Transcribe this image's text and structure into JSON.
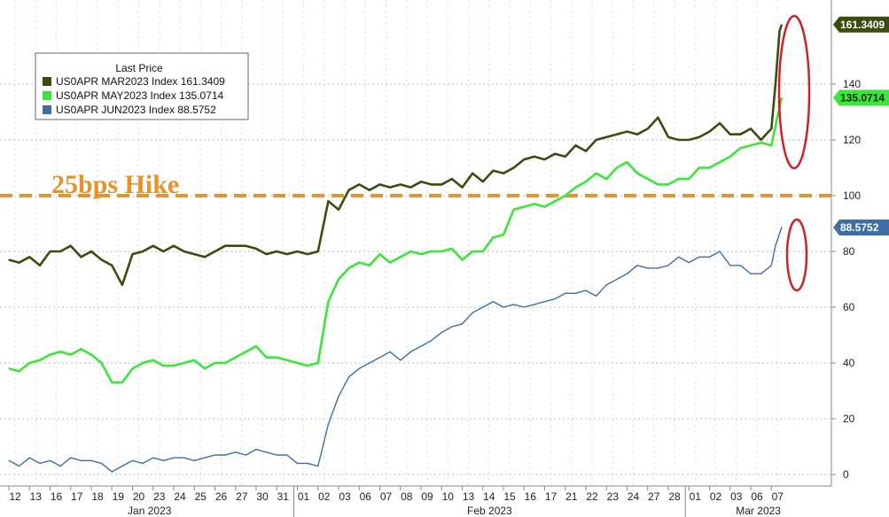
{
  "chart_data": {
    "type": "line",
    "title": "",
    "xlabel": "",
    "ylabel": "",
    "ylim": [
      -8,
      172
    ],
    "y_ticks": [
      0,
      20,
      40,
      60,
      80,
      100,
      120,
      140
    ],
    "y_axis_side": "right",
    "grid": true,
    "x_ticks": [
      "12",
      "13",
      "16",
      "17",
      "18",
      "19",
      "20",
      "23",
      "24",
      "25",
      "26",
      "27",
      "30",
      "31",
      "01",
      "02",
      "03",
      "06",
      "07",
      "08",
      "09",
      "10",
      "13",
      "14",
      "15",
      "16",
      "17",
      "21",
      "22",
      "23",
      "24",
      "27",
      "28",
      "01",
      "02",
      "03",
      "06",
      "07"
    ],
    "months": [
      {
        "label": "Jan 2023",
        "start": 0,
        "end": 13
      },
      {
        "label": "Feb 2023",
        "start": 14,
        "end": 32
      },
      {
        "label": "Mar 2023",
        "start": 33,
        "end": 37
      }
    ],
    "legend": {
      "title": "Last Price",
      "placement": "top-left",
      "entries": [
        {
          "label": "US0APR MAR2023 Index 161.3409",
          "color": "#3a4d0f"
        },
        {
          "label": "US0APR MAY2023 Index 135.0714",
          "color": "#39e639"
        },
        {
          "label": "US0APR JUN2023 Index 88.5752",
          "color": "#3d6fa6"
        }
      ]
    },
    "reference_line": {
      "value": 100,
      "label": "25bps Hike",
      "color": "#e8922a"
    },
    "series": [
      {
        "name": "US0APR MAR2023 Index",
        "color": "#3a4d0f",
        "last_value": 161.3409,
        "last_label": "161.3409",
        "points": [
          [
            0,
            77
          ],
          [
            0.5,
            76
          ],
          [
            1,
            78
          ],
          [
            1.5,
            75
          ],
          [
            2,
            80
          ],
          [
            2.5,
            80
          ],
          [
            3,
            82
          ],
          [
            3.5,
            78
          ],
          [
            4,
            80
          ],
          [
            4.5,
            77
          ],
          [
            5,
            75
          ],
          [
            5.5,
            68
          ],
          [
            6,
            79
          ],
          [
            6.5,
            80
          ],
          [
            7,
            82
          ],
          [
            7.5,
            80
          ],
          [
            8,
            82
          ],
          [
            8.5,
            80
          ],
          [
            9,
            79
          ],
          [
            9.5,
            78
          ],
          [
            10,
            80
          ],
          [
            10.5,
            82
          ],
          [
            11,
            82
          ],
          [
            11.5,
            82
          ],
          [
            12,
            81
          ],
          [
            12.5,
            79
          ],
          [
            13,
            80
          ],
          [
            13.5,
            79
          ],
          [
            14,
            80
          ],
          [
            14.5,
            79
          ],
          [
            15,
            80
          ],
          [
            15.5,
            98
          ],
          [
            16,
            95
          ],
          [
            16.5,
            102
          ],
          [
            17,
            104
          ],
          [
            17.5,
            102
          ],
          [
            18,
            104
          ],
          [
            18.5,
            103
          ],
          [
            19,
            104
          ],
          [
            19.5,
            103
          ],
          [
            20,
            105
          ],
          [
            20.5,
            104
          ],
          [
            21,
            104
          ],
          [
            21.5,
            106
          ],
          [
            22,
            103
          ],
          [
            22.5,
            108
          ],
          [
            23,
            105
          ],
          [
            23.5,
            109
          ],
          [
            24,
            108
          ],
          [
            24.5,
            110
          ],
          [
            25,
            113
          ],
          [
            25.5,
            114
          ],
          [
            26,
            113
          ],
          [
            26.5,
            115
          ],
          [
            27,
            114
          ],
          [
            27.5,
            118
          ],
          [
            28,
            116
          ],
          [
            28.5,
            120
          ],
          [
            29,
            121
          ],
          [
            29.5,
            122
          ],
          [
            30,
            123
          ],
          [
            30.5,
            122
          ],
          [
            31,
            124
          ],
          [
            31.5,
            128
          ],
          [
            32,
            121
          ],
          [
            32.5,
            120
          ],
          [
            33,
            120
          ],
          [
            33.5,
            121
          ],
          [
            34,
            123
          ],
          [
            34.5,
            126
          ],
          [
            35,
            122
          ],
          [
            35.5,
            122
          ],
          [
            36,
            124
          ],
          [
            36.5,
            120
          ],
          [
            37,
            124
          ],
          [
            37.2,
            140
          ],
          [
            37.4,
            159
          ],
          [
            37.5,
            161.3
          ]
        ]
      },
      {
        "name": "US0APR MAY2023 Index",
        "color": "#39e639",
        "last_value": 135.0714,
        "last_label": "135.0714",
        "points": [
          [
            0,
            38
          ],
          [
            0.5,
            37
          ],
          [
            1,
            40
          ],
          [
            1.5,
            41
          ],
          [
            2,
            43
          ],
          [
            2.5,
            44
          ],
          [
            3,
            43
          ],
          [
            3.5,
            45
          ],
          [
            4,
            43
          ],
          [
            4.5,
            40
          ],
          [
            5,
            33
          ],
          [
            5.5,
            33
          ],
          [
            6,
            38
          ],
          [
            6.5,
            40
          ],
          [
            7,
            41
          ],
          [
            7.5,
            39
          ],
          [
            8,
            39
          ],
          [
            8.5,
            40
          ],
          [
            9,
            41
          ],
          [
            9.5,
            38
          ],
          [
            10,
            40
          ],
          [
            10.5,
            40
          ],
          [
            11,
            42
          ],
          [
            11.5,
            44
          ],
          [
            12,
            46
          ],
          [
            12.5,
            42
          ],
          [
            13,
            42
          ],
          [
            13.5,
            41
          ],
          [
            14,
            40
          ],
          [
            14.5,
            39
          ],
          [
            15,
            40
          ],
          [
            15.5,
            62
          ],
          [
            16,
            70
          ],
          [
            16.5,
            74
          ],
          [
            17,
            76
          ],
          [
            17.5,
            75
          ],
          [
            18,
            79
          ],
          [
            18.5,
            76
          ],
          [
            19,
            78
          ],
          [
            19.5,
            80
          ],
          [
            20,
            79
          ],
          [
            20.5,
            80
          ],
          [
            21,
            80
          ],
          [
            21.5,
            81
          ],
          [
            22,
            77
          ],
          [
            22.5,
            80
          ],
          [
            23,
            80
          ],
          [
            23.5,
            85
          ],
          [
            24,
            86
          ],
          [
            24.5,
            95
          ],
          [
            25,
            96
          ],
          [
            25.5,
            97
          ],
          [
            26,
            96
          ],
          [
            26.5,
            98
          ],
          [
            27,
            100
          ],
          [
            27.5,
            103
          ],
          [
            28,
            105
          ],
          [
            28.5,
            108
          ],
          [
            29,
            106
          ],
          [
            29.5,
            110
          ],
          [
            30,
            112
          ],
          [
            30.5,
            108
          ],
          [
            31,
            106
          ],
          [
            31.5,
            104
          ],
          [
            32,
            104
          ],
          [
            32.5,
            106
          ],
          [
            33,
            106
          ],
          [
            33.5,
            110
          ],
          [
            34,
            110
          ],
          [
            34.5,
            112
          ],
          [
            35,
            114
          ],
          [
            35.5,
            117
          ],
          [
            36,
            118
          ],
          [
            36.5,
            119
          ],
          [
            37,
            118
          ],
          [
            37.2,
            125
          ],
          [
            37.5,
            135.1
          ]
        ]
      },
      {
        "name": "US0APR JUN2023 Index",
        "color": "#3d6fa6",
        "last_value": 88.5752,
        "last_label": "88.5752",
        "points": [
          [
            0,
            5
          ],
          [
            0.5,
            3
          ],
          [
            1,
            6
          ],
          [
            1.5,
            4
          ],
          [
            2,
            5
          ],
          [
            2.5,
            3
          ],
          [
            3,
            6
          ],
          [
            3.5,
            5
          ],
          [
            4,
            5
          ],
          [
            4.5,
            4
          ],
          [
            5,
            1
          ],
          [
            5.5,
            3
          ],
          [
            6,
            5
          ],
          [
            6.5,
            4
          ],
          [
            7,
            6
          ],
          [
            7.5,
            5
          ],
          [
            8,
            6
          ],
          [
            8.5,
            6
          ],
          [
            9,
            5
          ],
          [
            9.5,
            6
          ],
          [
            10,
            7
          ],
          [
            10.5,
            7
          ],
          [
            11,
            8
          ],
          [
            11.5,
            7
          ],
          [
            12,
            9
          ],
          [
            12.5,
            8
          ],
          [
            13,
            7
          ],
          [
            13.5,
            7
          ],
          [
            14,
            4
          ],
          [
            14.5,
            4
          ],
          [
            15,
            3
          ],
          [
            15.5,
            18
          ],
          [
            16,
            28
          ],
          [
            16.5,
            35
          ],
          [
            17,
            38
          ],
          [
            17.5,
            40
          ],
          [
            18,
            42
          ],
          [
            18.5,
            44
          ],
          [
            19,
            41
          ],
          [
            19.5,
            44
          ],
          [
            20,
            46
          ],
          [
            20.5,
            48
          ],
          [
            21,
            51
          ],
          [
            21.5,
            53
          ],
          [
            22,
            54
          ],
          [
            22.5,
            58
          ],
          [
            23,
            60
          ],
          [
            23.5,
            62
          ],
          [
            24,
            60
          ],
          [
            24.5,
            61
          ],
          [
            25,
            60
          ],
          [
            25.5,
            61
          ],
          [
            26,
            62
          ],
          [
            26.5,
            63
          ],
          [
            27,
            65
          ],
          [
            27.5,
            65
          ],
          [
            28,
            66
          ],
          [
            28.5,
            64
          ],
          [
            29,
            68
          ],
          [
            29.5,
            70
          ],
          [
            30,
            72
          ],
          [
            30.5,
            75
          ],
          [
            31,
            74
          ],
          [
            31.5,
            74
          ],
          [
            32,
            75
          ],
          [
            32.5,
            78
          ],
          [
            33,
            76
          ],
          [
            33.5,
            78
          ],
          [
            34,
            78
          ],
          [
            34.5,
            80
          ],
          [
            35,
            75
          ],
          [
            35.5,
            75
          ],
          [
            36,
            72
          ],
          [
            36.5,
            72
          ],
          [
            37,
            75
          ],
          [
            37.2,
            82
          ],
          [
            37.5,
            88.6
          ]
        ]
      }
    ]
  }
}
